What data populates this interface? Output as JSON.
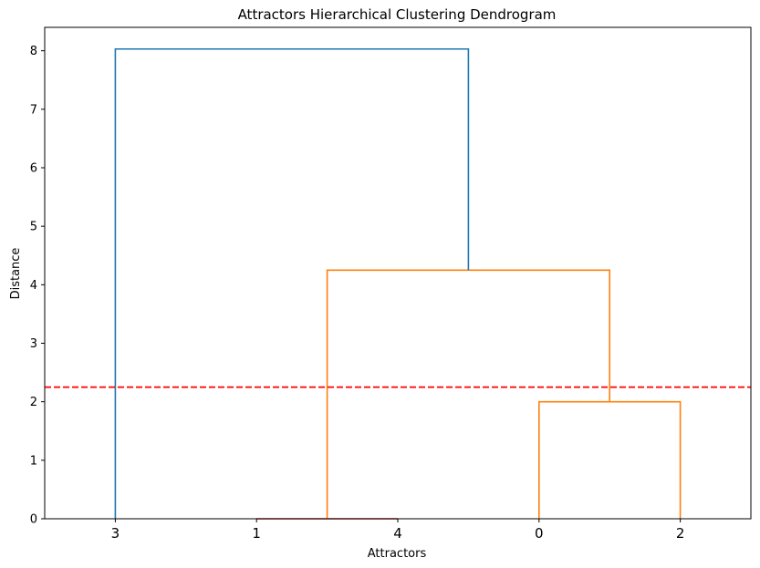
{
  "chart_data": {
    "type": "dendrogram",
    "title": "Attractors Hierarchical Clustering Dendrogram",
    "xlabel": "Attractors",
    "ylabel": "Distance",
    "leaf_order": [
      "3",
      "1",
      "4",
      "0",
      "2"
    ],
    "ylim": [
      0,
      8.4
    ],
    "y_ticks": [
      0,
      1,
      2,
      3,
      4,
      5,
      6,
      7,
      8
    ],
    "links": [
      {
        "left": "1",
        "right": "4",
        "height": 0.0,
        "color": "#d62728"
      },
      {
        "left": "0",
        "right": "2",
        "height": 2.0,
        "color": "#ff7f0e"
      },
      {
        "left": "(1,4)",
        "right": "(0,2)",
        "height": 4.25,
        "color": "#ff7f0e"
      },
      {
        "left": "3",
        "right": "(1,4,0,2)",
        "height": 8.03,
        "color": "#1f77b4"
      }
    ],
    "threshold": {
      "value": 2.25,
      "color": "#ff0000",
      "style": "dashed"
    },
    "grid": false
  }
}
